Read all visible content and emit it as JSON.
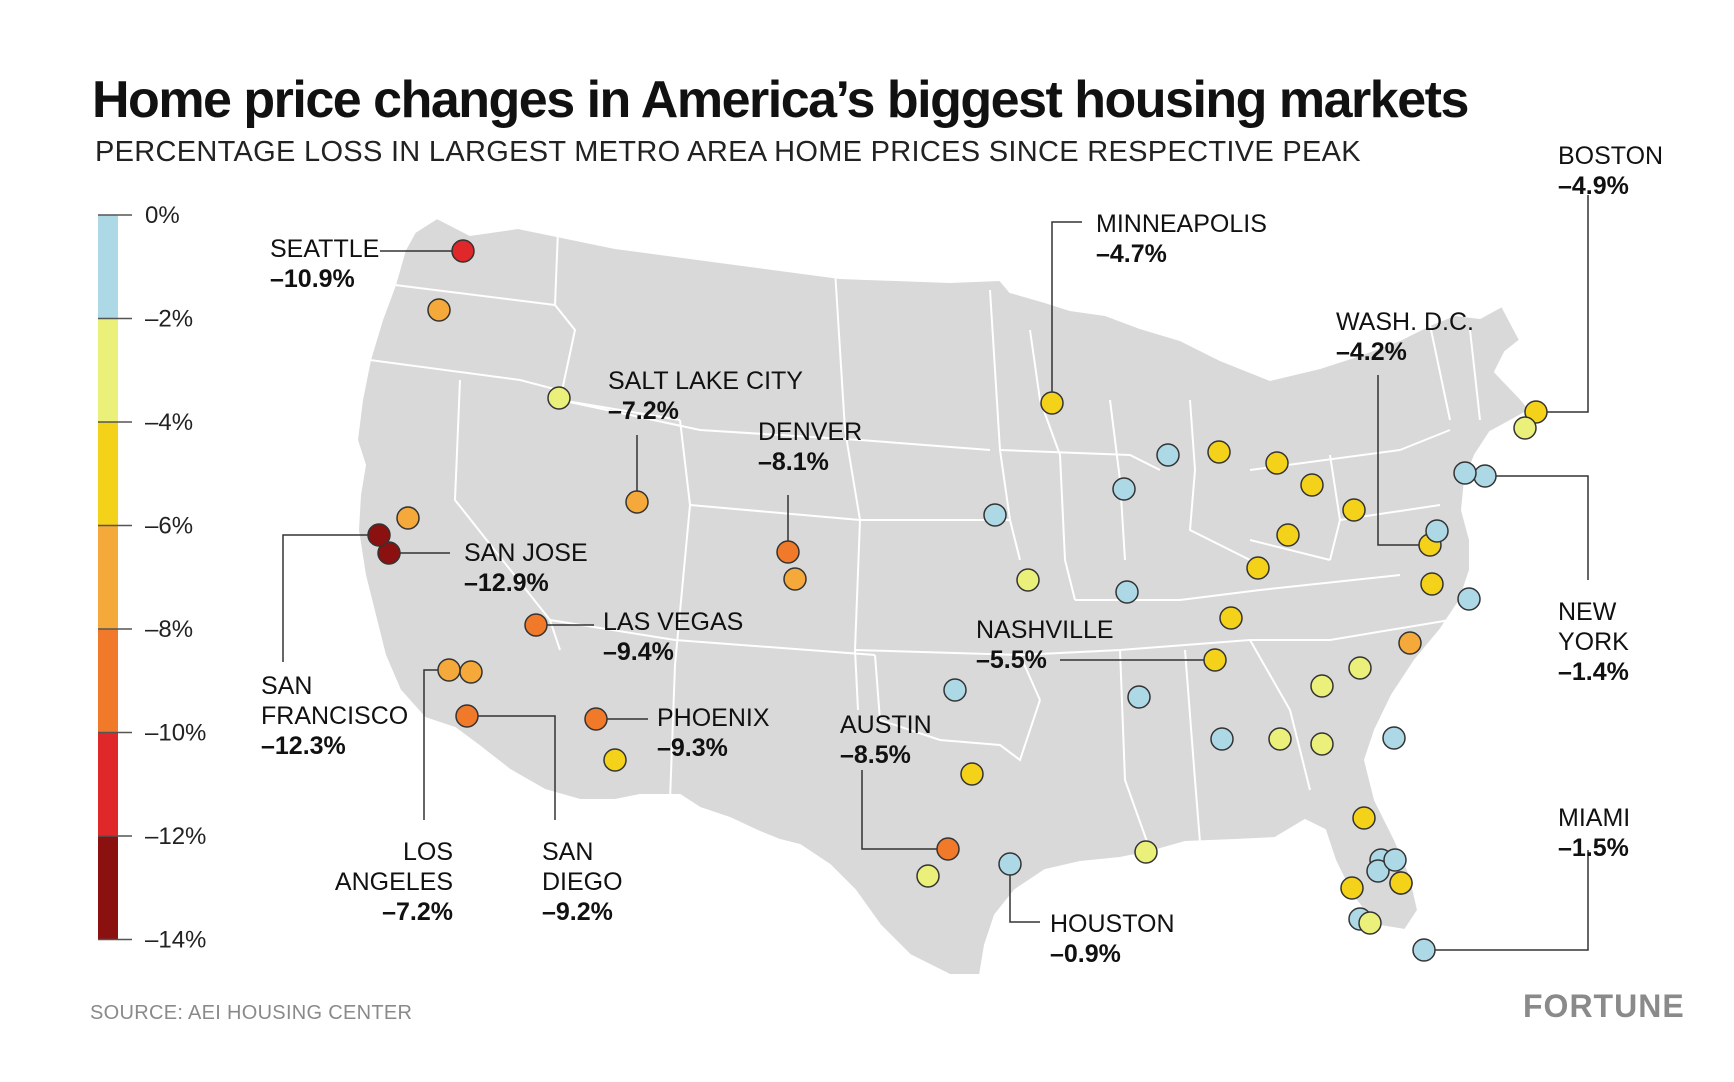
{
  "title": "Home price changes in America’s biggest housing markets",
  "subtitle": "PERCENTAGE LOSS IN LARGEST METRO AREA HOME PRICES SINCE RESPECTIVE PEAK",
  "source": "SOURCE: AEI HOUSING CENTER",
  "logo_text": "FORTUNE",
  "colors": {
    "land": "#d9d9d9",
    "borders": "#ffffff",
    "leader": "#333333",
    "scale": [
      "#add8e6",
      "#eaf07a",
      "#f5d21a",
      "#f4a93a",
      "#f07a2a",
      "#e0282a",
      "#8b1010"
    ]
  },
  "legend": {
    "ticks": [
      "0%",
      "–2%",
      "–4%",
      "–6%",
      "–8%",
      "–10%",
      "–12%",
      "–14%"
    ],
    "bands": [
      {
        "from": 0,
        "to": -2,
        "color": "#add8e6"
      },
      {
        "from": -2,
        "to": -4,
        "color": "#eaf07a"
      },
      {
        "from": -4,
        "to": -6,
        "color": "#f5d21a"
      },
      {
        "from": -6,
        "to": -8,
        "color": "#f4a93a"
      },
      {
        "from": -8,
        "to": -10,
        "color": "#f07a2a"
      },
      {
        "from": -10,
        "to": -12,
        "color": "#e0282a"
      },
      {
        "from": -12,
        "to": -14,
        "color": "#8b1010"
      }
    ]
  },
  "labeled_markets": [
    {
      "name": [
        "SEATTLE"
      ],
      "value": "–10.9%",
      "pct": -10.9
    },
    {
      "name": [
        "SAN JOSE"
      ],
      "value": "–12.9%",
      "pct": -12.9
    },
    {
      "name": [
        "SAN",
        "FRANCISCO"
      ],
      "value": "–12.3%",
      "pct": -12.3
    },
    {
      "name": [
        "LOS",
        "ANGELES"
      ],
      "value": "–7.2%",
      "pct": -7.2
    },
    {
      "name": [
        "SAN",
        "DIEGO"
      ],
      "value": "–9.2%",
      "pct": -9.2
    },
    {
      "name": [
        "LAS VEGAS"
      ],
      "value": "–9.4%",
      "pct": -9.4
    },
    {
      "name": [
        "PHOENIX"
      ],
      "value": "–9.3%",
      "pct": -9.3
    },
    {
      "name": [
        "SALT LAKE CITY"
      ],
      "value": "–7.2%",
      "pct": -7.2
    },
    {
      "name": [
        "DENVER"
      ],
      "value": "–8.1%",
      "pct": -8.1
    },
    {
      "name": [
        "AUSTIN"
      ],
      "value": "–8.5%",
      "pct": -8.5
    },
    {
      "name": [
        "HOUSTON"
      ],
      "value": "–0.9%",
      "pct": -0.9
    },
    {
      "name": [
        "NASHVILLE"
      ],
      "value": "–5.5%",
      "pct": -5.5
    },
    {
      "name": [
        "MINNEAPOLIS"
      ],
      "value": "–4.7%",
      "pct": -4.7
    },
    {
      "name": [
        "WASH. D.C."
      ],
      "value": "–4.2%",
      "pct": -4.2
    },
    {
      "name": [
        "BOSTON"
      ],
      "value": "–4.9%",
      "pct": -4.9
    },
    {
      "name": [
        "NEW",
        "YORK"
      ],
      "value": "–1.4%",
      "pct": -1.4
    },
    {
      "name": [
        "MIAMI"
      ],
      "value": "–1.5%",
      "pct": -1.5
    }
  ],
  "unlabeled_market_bands": [
    3,
    1,
    3,
    3,
    2,
    0,
    0,
    2,
    2,
    2,
    0,
    2,
    2,
    0,
    0,
    1,
    2,
    0,
    3,
    2,
    1,
    0,
    1,
    0,
    1,
    2,
    2,
    0,
    1,
    2,
    1,
    0,
    1,
    0,
    0,
    0,
    1,
    1,
    1,
    2,
    0,
    3,
    2,
    0
  ]
}
